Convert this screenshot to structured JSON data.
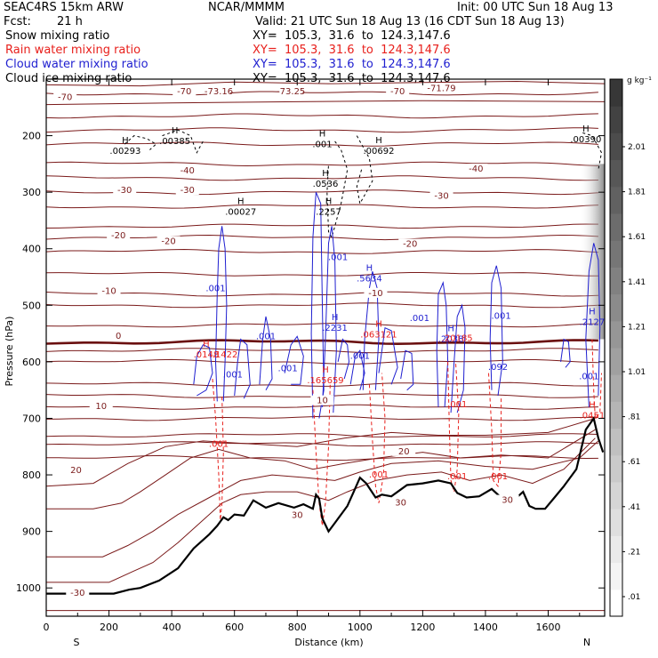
{
  "header": {
    "model": "SEAC4RS 15km ARW",
    "org": "NCAR/MMMM",
    "init": "Init: 00 UTC Sun 18 Aug 13",
    "fcst_label": "Fcst:",
    "fcst_value": "21 h",
    "valid": "Valid: 21 UTC Sun 18 Aug 13 (16 CDT Sun 18 Aug 13)",
    "fields": [
      {
        "name": "Snow mixing ratio",
        "xy": "XY=  105.3,  31.6  to  124.3,147.6",
        "color": "#000000"
      },
      {
        "name": "Rain water mixing ratio",
        "xy": "XY=  105.3,  31.6  to  124.3,147.6",
        "color": "#e8201c"
      },
      {
        "name": "Cloud water mixing ratio",
        "xy": "XY=  105.3,  31.6  to  124.3,147.6",
        "color": "#1f1fd0"
      },
      {
        "name": "Cloud ice mixing ratio",
        "xy": "XY=  105.3,  31.6  to  124.3,147.6",
        "color": "#000000"
      }
    ]
  },
  "chart_data": {
    "type": "cross-section",
    "xlabel": "Distance (km)",
    "ylabel": "Pressure (hPa)",
    "xlim": [
      0,
      1780
    ],
    "ylim": [
      100,
      1050
    ],
    "x_ticks": [
      "0",
      "200",
      "400",
      "600",
      "800",
      "1000",
      "1200",
      "1400",
      "1600"
    ],
    "y_ticks": [
      "200",
      "300",
      "400",
      "500",
      "600",
      "700",
      "800",
      "900",
      "1000"
    ],
    "endpoints": {
      "left": "S",
      "right": "N"
    },
    "colorbar": {
      "unit": "g kg⁻¹",
      "ticks": [
        ".01",
        ".21",
        ".41",
        ".61",
        ".81",
        "1.01",
        "1.21",
        "1.41",
        "1.61",
        "1.81",
        "2.01"
      ]
    },
    "temperature_labels": [
      {
        "x": 60,
        "p": 135,
        "text": "-70"
      },
      {
        "x": 440,
        "p": 125,
        "text": "-70"
      },
      {
        "x": 1120,
        "p": 125,
        "text": "-70"
      },
      {
        "x": 550,
        "p": 125,
        "text": "-73.16"
      },
      {
        "x": 780,
        "p": 125,
        "text": "-73.25"
      },
      {
        "x": 1260,
        "p": 120,
        "text": "-71.79"
      },
      {
        "x": 450,
        "p": 265,
        "text": "-40"
      },
      {
        "x": 1370,
        "p": 262,
        "text": "-40"
      },
      {
        "x": 250,
        "p": 300,
        "text": "-30"
      },
      {
        "x": 450,
        "p": 300,
        "text": "-30"
      },
      {
        "x": 1260,
        "p": 310,
        "text": "-30"
      },
      {
        "x": 230,
        "p": 380,
        "text": "-20"
      },
      {
        "x": 390,
        "p": 390,
        "text": "-20"
      },
      {
        "x": 1160,
        "p": 395,
        "text": "-20"
      },
      {
        "x": 200,
        "p": 478,
        "text": "-10"
      },
      {
        "x": 1050,
        "p": 482,
        "text": "-10"
      },
      {
        "x": 230,
        "p": 558,
        "text": "0"
      },
      {
        "x": 175,
        "p": 682,
        "text": "10"
      },
      {
        "x": 880,
        "p": 672,
        "text": "10"
      },
      {
        "x": 95,
        "p": 795,
        "text": "20"
      },
      {
        "x": 1140,
        "p": 762,
        "text": "20"
      },
      {
        "x": 800,
        "p": 875,
        "text": "30"
      },
      {
        "x": 1130,
        "p": 853,
        "text": "30"
      },
      {
        "x": 1470,
        "p": 848,
        "text": "30"
      },
      {
        "x": 100,
        "p": 1012,
        "text": "-30"
      }
    ],
    "snow_ice_labels": [
      {
        "x": 252,
        "p": 232,
        "h": "H",
        "text": ".00293"
      },
      {
        "x": 410,
        "p": 215,
        "h": "H",
        "text": ".00385"
      },
      {
        "x": 620,
        "p": 340,
        "h": "H",
        "text": ".00027"
      },
      {
        "x": 880,
        "p": 220,
        "h": "H",
        "text": ".001"
      },
      {
        "x": 890,
        "p": 290,
        "h": "H",
        "text": ".0536"
      },
      {
        "x": 900,
        "p": 340,
        "h": "H",
        "text": ".2257"
      },
      {
        "x": 1060,
        "p": 232,
        "h": "H",
        "text": ".00692"
      },
      {
        "x": 1720,
        "p": 212,
        "h": "H",
        "text": ".00390"
      }
    ],
    "cloud_water_labels": [
      {
        "x": 540,
        "p": 475,
        "text": ".001"
      },
      {
        "x": 700,
        "p": 560,
        "text": ".001"
      },
      {
        "x": 770,
        "p": 617,
        "text": ".001"
      },
      {
        "x": 595,
        "p": 628,
        "text": ".001"
      },
      {
        "x": 920,
        "p": 545,
        "h": "H",
        "text": ".2231"
      },
      {
        "x": 930,
        "p": 420,
        "text": ".001"
      },
      {
        "x": 1030,
        "p": 458,
        "h": "H",
        "text": ".5634"
      },
      {
        "x": 1190,
        "p": 528,
        "text": ".001"
      },
      {
        "x": 1450,
        "p": 524,
        "text": ".001"
      },
      {
        "x": 1440,
        "p": 614,
        "text": ".092"
      },
      {
        "x": 1290,
        "p": 565,
        "h": "H",
        "text": ".2038"
      },
      {
        "x": 1000,
        "p": 595,
        "text": ".001"
      },
      {
        "x": 1740,
        "p": 535,
        "h": "H",
        "text": ".2127"
      },
      {
        "x": 1730,
        "p": 631,
        "text": ".001"
      }
    ],
    "rain_labels": [
      {
        "x": 510,
        "p": 592,
        "h": "H",
        "text": ".0148"
      },
      {
        "x": 570,
        "p": 592,
        "text": ".1422"
      },
      {
        "x": 890,
        "p": 638,
        "h": "H",
        "text": ".165659"
      },
      {
        "x": 1060,
        "p": 557,
        "h": "H",
        "text": ".063121"
      },
      {
        "x": 1310,
        "p": 563,
        "text": ".20185"
      },
      {
        "x": 1310,
        "p": 680,
        "text": ".001"
      },
      {
        "x": 1740,
        "p": 700,
        "h": "H",
        "text": ".0451"
      },
      {
        "x": 550,
        "p": 750,
        "text": ".001"
      },
      {
        "x": 1060,
        "p": 805,
        "text": ".001"
      },
      {
        "x": 1310,
        "p": 808,
        "text": ".001"
      },
      {
        "x": 1440,
        "p": 808,
        "text": ".001"
      }
    ]
  },
  "colors": {
    "temp": "#7a1a1a",
    "zero_line": "#6a0f0f",
    "terrain": "#000000",
    "cloud": "#1f1fd0",
    "rain": "#e8201c"
  }
}
